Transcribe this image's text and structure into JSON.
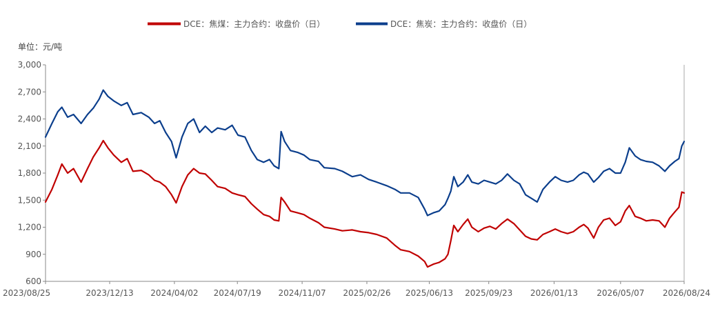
{
  "chart_data": {
    "type": "line",
    "unit_label": "单位：元/吨",
    "ylim": [
      600,
      3000
    ],
    "y_ticks": [
      600,
      900,
      1200,
      1500,
      1800,
      2100,
      2400,
      2700,
      3000
    ],
    "y_tick_labels": [
      "600",
      "900",
      "1,200",
      "1,500",
      "1,800",
      "2,100",
      "2,400",
      "2,700",
      "3,000"
    ],
    "x_range": [
      "2023-08-25",
      "2026-08-24"
    ],
    "x_ticks": [
      "2023-08-25",
      "2023-12-13",
      "2024-04-02",
      "2024-07-19",
      "2024-11-07",
      "2025-02-26",
      "2025-06-13",
      "2025-09-23",
      "2026-01-13",
      "2026-05-07",
      "2026-08-24"
    ],
    "x_tick_labels": [
      "2023/08/25",
      "2023/12/13",
      "2024/04/02",
      "2024/07/19",
      "2024/11/07",
      "2025/02/26",
      "2025/06/13",
      "2025/09/23",
      "2026/01/13",
      "2026/05/07",
      "2026/08/24"
    ],
    "legend_position": "top-center",
    "grid": false,
    "series": [
      {
        "name": "DCE：焦煤：主力合约：收盘价（日）",
        "color": "#c00000",
        "points": [
          [
            "2023-08-25",
            1480
          ],
          [
            "2023-09-05",
            1620
          ],
          [
            "2023-09-15",
            1780
          ],
          [
            "2023-09-22",
            1900
          ],
          [
            "2023-10-02",
            1800
          ],
          [
            "2023-10-12",
            1850
          ],
          [
            "2023-10-25",
            1700
          ],
          [
            "2023-11-05",
            1850
          ],
          [
            "2023-11-15",
            1980
          ],
          [
            "2023-11-25",
            2080
          ],
          [
            "2023-12-02",
            2160
          ],
          [
            "2023-12-10",
            2080
          ],
          [
            "2023-12-20",
            2000
          ],
          [
            "2024-01-02",
            1920
          ],
          [
            "2024-01-12",
            1960
          ],
          [
            "2024-01-22",
            1820
          ],
          [
            "2024-02-05",
            1830
          ],
          [
            "2024-02-18",
            1780
          ],
          [
            "2024-02-28",
            1720
          ],
          [
            "2024-03-08",
            1700
          ],
          [
            "2024-03-18",
            1650
          ],
          [
            "2024-03-28",
            1560
          ],
          [
            "2024-04-05",
            1470
          ],
          [
            "2024-04-15",
            1650
          ],
          [
            "2024-04-25",
            1780
          ],
          [
            "2024-05-05",
            1850
          ],
          [
            "2024-05-15",
            1800
          ],
          [
            "2024-05-25",
            1790
          ],
          [
            "2024-06-05",
            1720
          ],
          [
            "2024-06-15",
            1650
          ],
          [
            "2024-06-28",
            1630
          ],
          [
            "2024-07-10",
            1580
          ],
          [
            "2024-07-20",
            1560
          ],
          [
            "2024-08-01",
            1540
          ],
          [
            "2024-08-12",
            1460
          ],
          [
            "2024-08-22",
            1400
          ],
          [
            "2024-09-02",
            1340
          ],
          [
            "2024-09-12",
            1320
          ],
          [
            "2024-09-20",
            1280
          ],
          [
            "2024-09-28",
            1270
          ],
          [
            "2024-10-02",
            1530
          ],
          [
            "2024-10-08",
            1480
          ],
          [
            "2024-10-18",
            1380
          ],
          [
            "2024-10-30",
            1360
          ],
          [
            "2024-11-10",
            1340
          ],
          [
            "2024-11-20",
            1300
          ],
          [
            "2024-12-05",
            1250
          ],
          [
            "2024-12-15",
            1200
          ],
          [
            "2025-01-02",
            1180
          ],
          [
            "2025-01-15",
            1160
          ],
          [
            "2025-02-01",
            1170
          ],
          [
            "2025-02-15",
            1150
          ],
          [
            "2025-03-01",
            1140
          ],
          [
            "2025-03-15",
            1120
          ],
          [
            "2025-04-01",
            1080
          ],
          [
            "2025-04-15",
            1000
          ],
          [
            "2025-04-25",
            950
          ],
          [
            "2025-05-10",
            930
          ],
          [
            "2025-05-25",
            880
          ],
          [
            "2025-06-05",
            820
          ],
          [
            "2025-06-10",
            760
          ],
          [
            "2025-06-20",
            790
          ],
          [
            "2025-06-30",
            810
          ],
          [
            "2025-07-10",
            850
          ],
          [
            "2025-07-15",
            900
          ],
          [
            "2025-07-20",
            1050
          ],
          [
            "2025-07-25",
            1220
          ],
          [
            "2025-08-01",
            1150
          ],
          [
            "2025-08-10",
            1230
          ],
          [
            "2025-08-18",
            1290
          ],
          [
            "2025-08-25",
            1200
          ],
          [
            "2025-09-05",
            1150
          ],
          [
            "2025-09-15",
            1190
          ],
          [
            "2025-09-25",
            1210
          ],
          [
            "2025-10-05",
            1180
          ],
          [
            "2025-10-15",
            1240
          ],
          [
            "2025-10-25",
            1290
          ],
          [
            "2025-11-05",
            1240
          ],
          [
            "2025-11-15",
            1170
          ],
          [
            "2025-11-25",
            1100
          ],
          [
            "2025-12-05",
            1070
          ],
          [
            "2025-12-15",
            1060
          ],
          [
            "2025-12-25",
            1120
          ],
          [
            "2026-01-05",
            1150
          ],
          [
            "2026-01-15",
            1180
          ],
          [
            "2026-01-25",
            1150
          ],
          [
            "2026-02-05",
            1130
          ],
          [
            "2026-02-15",
            1150
          ],
          [
            "2026-02-25",
            1200
          ],
          [
            "2026-03-05",
            1230
          ],
          [
            "2026-03-12",
            1190
          ],
          [
            "2026-03-22",
            1080
          ],
          [
            "2026-03-30",
            1200
          ],
          [
            "2026-04-08",
            1280
          ],
          [
            "2026-04-18",
            1300
          ],
          [
            "2026-04-28",
            1220
          ],
          [
            "2026-05-07",
            1260
          ],
          [
            "2026-05-15",
            1380
          ],
          [
            "2026-05-22",
            1440
          ],
          [
            "2026-06-01",
            1320
          ],
          [
            "2026-06-10",
            1300
          ],
          [
            "2026-06-20",
            1270
          ],
          [
            "2026-07-01",
            1280
          ],
          [
            "2026-07-12",
            1270
          ],
          [
            "2026-07-22",
            1200
          ],
          [
            "2026-07-30",
            1300
          ],
          [
            "2026-08-08",
            1370
          ],
          [
            "2026-08-15",
            1420
          ],
          [
            "2026-08-20",
            1590
          ],
          [
            "2026-08-24",
            1580
          ]
        ]
      },
      {
        "name": "DCE：焦炭：主力合约：收盘价（日）",
        "color": "#0b3e8c",
        "points": [
          [
            "2023-08-25",
            2200
          ],
          [
            "2023-09-05",
            2350
          ],
          [
            "2023-09-15",
            2480
          ],
          [
            "2023-09-22",
            2530
          ],
          [
            "2023-10-02",
            2420
          ],
          [
            "2023-10-12",
            2450
          ],
          [
            "2023-10-25",
            2350
          ],
          [
            "2023-11-05",
            2450
          ],
          [
            "2023-11-15",
            2520
          ],
          [
            "2023-11-25",
            2620
          ],
          [
            "2023-12-02",
            2720
          ],
          [
            "2023-12-10",
            2650
          ],
          [
            "2023-12-20",
            2600
          ],
          [
            "2024-01-02",
            2550
          ],
          [
            "2024-01-12",
            2580
          ],
          [
            "2024-01-22",
            2450
          ],
          [
            "2024-02-05",
            2470
          ],
          [
            "2024-02-18",
            2420
          ],
          [
            "2024-02-28",
            2350
          ],
          [
            "2024-03-08",
            2380
          ],
          [
            "2024-03-18",
            2250
          ],
          [
            "2024-03-28",
            2150
          ],
          [
            "2024-04-05",
            1970
          ],
          [
            "2024-04-15",
            2200
          ],
          [
            "2024-04-25",
            2350
          ],
          [
            "2024-05-05",
            2400
          ],
          [
            "2024-05-15",
            2250
          ],
          [
            "2024-05-25",
            2320
          ],
          [
            "2024-06-05",
            2250
          ],
          [
            "2024-06-15",
            2300
          ],
          [
            "2024-06-28",
            2280
          ],
          [
            "2024-07-10",
            2330
          ],
          [
            "2024-07-20",
            2220
          ],
          [
            "2024-08-01",
            2200
          ],
          [
            "2024-08-12",
            2050
          ],
          [
            "2024-08-22",
            1950
          ],
          [
            "2024-09-02",
            1920
          ],
          [
            "2024-09-12",
            1950
          ],
          [
            "2024-09-20",
            1880
          ],
          [
            "2024-09-28",
            1850
          ],
          [
            "2024-10-02",
            2260
          ],
          [
            "2024-10-08",
            2150
          ],
          [
            "2024-10-18",
            2050
          ],
          [
            "2024-10-30",
            2030
          ],
          [
            "2024-11-10",
            2000
          ],
          [
            "2024-11-20",
            1950
          ],
          [
            "2024-12-05",
            1930
          ],
          [
            "2024-12-15",
            1860
          ],
          [
            "2025-01-02",
            1850
          ],
          [
            "2025-01-15",
            1820
          ],
          [
            "2025-02-01",
            1760
          ],
          [
            "2025-02-15",
            1780
          ],
          [
            "2025-03-01",
            1730
          ],
          [
            "2025-03-15",
            1700
          ],
          [
            "2025-04-01",
            1660
          ],
          [
            "2025-04-15",
            1620
          ],
          [
            "2025-04-25",
            1580
          ],
          [
            "2025-05-10",
            1580
          ],
          [
            "2025-05-25",
            1530
          ],
          [
            "2025-06-05",
            1400
          ],
          [
            "2025-06-10",
            1330
          ],
          [
            "2025-06-20",
            1360
          ],
          [
            "2025-06-30",
            1380
          ],
          [
            "2025-07-10",
            1450
          ],
          [
            "2025-07-15",
            1520
          ],
          [
            "2025-07-20",
            1600
          ],
          [
            "2025-07-25",
            1760
          ],
          [
            "2025-08-01",
            1650
          ],
          [
            "2025-08-10",
            1700
          ],
          [
            "2025-08-18",
            1780
          ],
          [
            "2025-08-25",
            1700
          ],
          [
            "2025-09-05",
            1680
          ],
          [
            "2025-09-15",
            1720
          ],
          [
            "2025-09-25",
            1700
          ],
          [
            "2025-10-05",
            1680
          ],
          [
            "2025-10-15",
            1720
          ],
          [
            "2025-10-25",
            1790
          ],
          [
            "2025-11-05",
            1720
          ],
          [
            "2025-11-15",
            1680
          ],
          [
            "2025-11-25",
            1560
          ],
          [
            "2025-12-05",
            1520
          ],
          [
            "2025-12-15",
            1480
          ],
          [
            "2025-12-25",
            1620
          ],
          [
            "2026-01-05",
            1700
          ],
          [
            "2026-01-15",
            1760
          ],
          [
            "2026-01-25",
            1720
          ],
          [
            "2026-02-05",
            1700
          ],
          [
            "2026-02-15",
            1720
          ],
          [
            "2026-02-25",
            1780
          ],
          [
            "2026-03-05",
            1810
          ],
          [
            "2026-03-12",
            1790
          ],
          [
            "2026-03-22",
            1700
          ],
          [
            "2026-03-30",
            1750
          ],
          [
            "2026-04-08",
            1820
          ],
          [
            "2026-04-18",
            1850
          ],
          [
            "2026-04-28",
            1800
          ],
          [
            "2026-05-07",
            1800
          ],
          [
            "2026-05-15",
            1920
          ],
          [
            "2026-05-22",
            2080
          ],
          [
            "2026-06-01",
            1990
          ],
          [
            "2026-06-10",
            1950
          ],
          [
            "2026-06-20",
            1930
          ],
          [
            "2026-07-01",
            1920
          ],
          [
            "2026-07-12",
            1880
          ],
          [
            "2026-07-22",
            1820
          ],
          [
            "2026-07-30",
            1880
          ],
          [
            "2026-08-08",
            1930
          ],
          [
            "2026-08-15",
            1960
          ],
          [
            "2026-08-20",
            2100
          ],
          [
            "2026-08-24",
            2150
          ]
        ]
      }
    ]
  }
}
